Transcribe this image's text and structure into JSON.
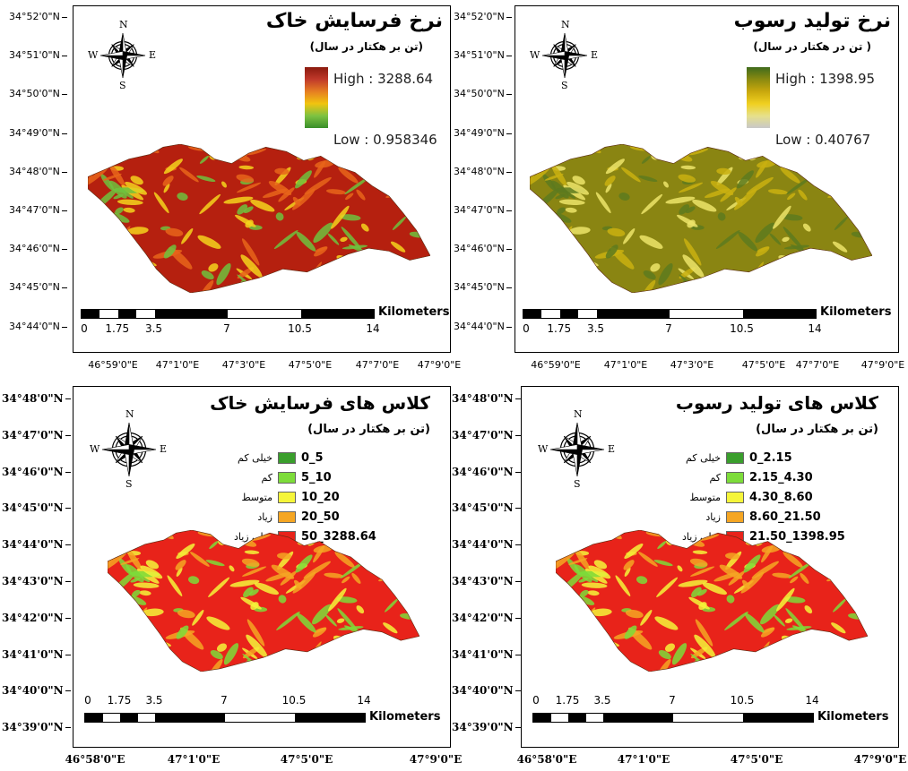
{
  "panels": {
    "erosion_rate": {
      "title": "نرخ فرسایش خاک",
      "subtitle": "(تن بر هکتار در سال)",
      "high_label": "High : 3288.64",
      "low_label": "Low : 0.958346",
      "ramp_colors": [
        "#8b1a0e",
        "#c0392b",
        "#e67e22",
        "#f1c40f",
        "#7dc242",
        "#3a8f2a"
      ],
      "lat_labels": [
        "34°52'0\"N",
        "34°51'0\"N",
        "34°50'0\"N",
        "34°49'0\"N",
        "34°48'0\"N",
        "34°47'0\"N",
        "34°46'0\"N",
        "34°45'0\"N",
        "34°44'0\"N"
      ],
      "lon_labels": [
        "46°59'0\"E",
        "47°1'0\"E",
        "47°3'0\"E",
        "47°5'0\"E",
        "47°7'0\"E",
        "47°9'0\"E"
      ],
      "scale_numbers": [
        "0",
        "1.75",
        "3.5",
        "7",
        "10.5",
        "14"
      ],
      "scale_unit": "Kilometers",
      "map_colors": {
        "base": "#b5200f",
        "mid": "#e8651a",
        "low": "#f4d31c",
        "green": "#6ec23d"
      }
    },
    "sediment_rate": {
      "title": "نرخ تولید رسوب",
      "subtitle": "( تن در هکتار در سال)",
      "high_label": "High : 1398.95",
      "low_label": "Low : 0.40767",
      "ramp_colors": [
        "#3f6b1c",
        "#8a8a10",
        "#c9a80d",
        "#f0d020",
        "#e6e08a",
        "#c8c8c8"
      ],
      "lat_labels": [
        "34°52'0\"N",
        "34°51'0\"N",
        "34°50'0\"N",
        "34°49'0\"N",
        "34°48'0\"N",
        "34°47'0\"N",
        "34°46'0\"N",
        "34°45'0\"N",
        "34°44'0\"N"
      ],
      "lon_labels": [
        "46°59'0\"E",
        "47°1'0\"E",
        "47°3'0\"E",
        "47°5'0\"E",
        "47°7'0\"E",
        "47°9'0\"E"
      ],
      "scale_numbers": [
        "0",
        "1.75",
        "3.5",
        "7",
        "10.5",
        "14"
      ],
      "scale_unit": "Kilometers",
      "map_colors": {
        "base": "#8a8512",
        "mid": "#c9b010",
        "low": "#ece46a",
        "green": "#5d7a1f"
      }
    },
    "erosion_class": {
      "title": "کلاس های فرسایش خاک",
      "subtitle": "(تن بر هکتار در سال)",
      "legend": [
        {
          "name": "خیلی کم",
          "range": "0_5",
          "color": "#3a9e2c"
        },
        {
          "name": "کم",
          "range": "5_10",
          "color": "#7ddc3a"
        },
        {
          "name": "متوسط",
          "range": "10_20",
          "color": "#f5f53a"
        },
        {
          "name": "زیاد",
          "range": "20_50",
          "color": "#f5a623"
        },
        {
          "name": "خیلی زیاد",
          "range": "50_3288.64",
          "color": "#e8231a"
        }
      ],
      "lat_labels": [
        "34°48'0\"N",
        "34°47'0\"N",
        "34°46'0\"N",
        "34°45'0\"N",
        "34°44'0\"N",
        "34°43'0\"N",
        "34°42'0\"N",
        "34°41'0\"N",
        "34°40'0\"N",
        "34°39'0\"N"
      ],
      "lon_labels": [
        "46°58'0\"E",
        "47°1'0\"E",
        "47°5'0\"E",
        "47°9'0\"E"
      ],
      "scale_numbers": [
        "0",
        "1.75",
        "3.5",
        "7",
        "10.5",
        "14"
      ],
      "scale_unit": "Kilometers",
      "map_colors": {
        "base": "#e8231a",
        "mid": "#f5a623",
        "low": "#f5f53a",
        "green": "#7ddc3a"
      }
    },
    "sediment_class": {
      "title": "کلاس های تولید رسوب",
      "subtitle": "(تن بر هکتار در سال)",
      "legend": [
        {
          "name": "خیلی کم",
          "range": "0_2.15",
          "color": "#3a9e2c"
        },
        {
          "name": "کم",
          "range": "2.15_4.30",
          "color": "#7ddc3a"
        },
        {
          "name": "متوسط",
          "range": "4.30_8.60",
          "color": "#f5f53a"
        },
        {
          "name": "زیاد",
          "range": "8.60_21.50",
          "color": "#f5a623"
        },
        {
          "name": "خیلی زیاد",
          "range": "21.50_1398.95",
          "color": "#e8231a"
        }
      ],
      "lat_labels": [
        "34°48'0\"N",
        "34°47'0\"N",
        "34°46'0\"N",
        "34°45'0\"N",
        "34°44'0\"N",
        "34°43'0\"N",
        "34°42'0\"N",
        "34°41'0\"N",
        "34°40'0\"N",
        "34°39'0\"N"
      ],
      "lon_labels": [
        "46°58'0\"E",
        "47°1'0\"E",
        "47°5'0\"E",
        "47°9'0\"E"
      ],
      "scale_numbers": [
        "0",
        "1.75",
        "3.5",
        "7",
        "10.5",
        "14"
      ],
      "scale_unit": "Kilometers",
      "map_colors": {
        "base": "#e8231a",
        "mid": "#f5a623",
        "low": "#f5f53a",
        "green": "#7ddc3a"
      }
    }
  },
  "compass": {
    "n": "N",
    "s": "S",
    "e": "E",
    "w": "W"
  }
}
